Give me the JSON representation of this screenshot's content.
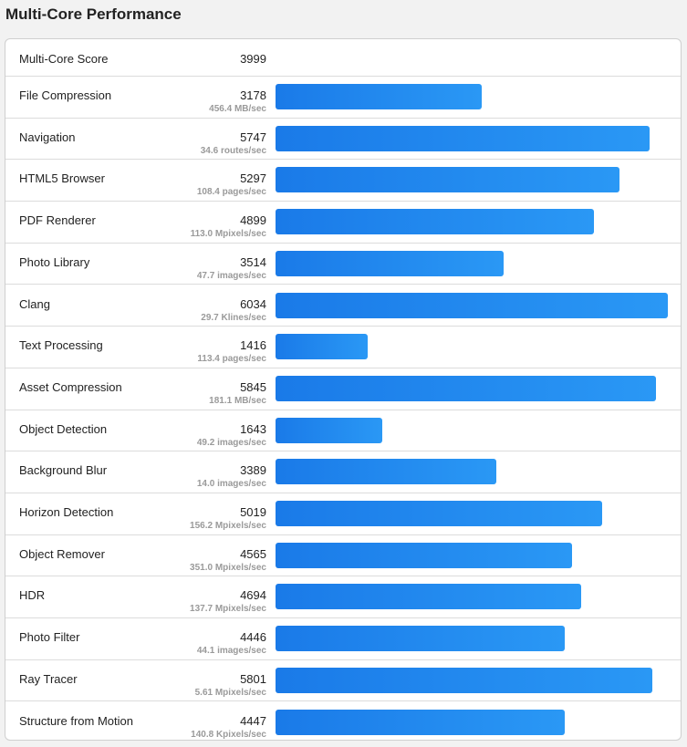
{
  "page_title": "Multi-Core Performance",
  "summary": {
    "label": "Multi-Core Score",
    "score": "3999"
  },
  "colors": {
    "bar_start": "#1a7ae8",
    "bar_end": "#2a98f5"
  },
  "chart_data": {
    "type": "bar",
    "orientation": "horizontal",
    "title": "Multi-Core Performance",
    "xlim": [
      0,
      6034
    ],
    "categories": [
      "File Compression",
      "Navigation",
      "HTML5 Browser",
      "PDF Renderer",
      "Photo Library",
      "Clang",
      "Text Processing",
      "Asset Compression",
      "Object Detection",
      "Background Blur",
      "Horizon Detection",
      "Object Remover",
      "HDR",
      "Photo Filter",
      "Ray Tracer",
      "Structure from Motion"
    ],
    "values": [
      3178,
      5747,
      5297,
      4899,
      3514,
      6034,
      1416,
      5845,
      1643,
      3389,
      5019,
      4565,
      4694,
      4446,
      5801,
      4447
    ],
    "rates": [
      "456.4 MB/sec",
      "34.6 routes/sec",
      "108.4 pages/sec",
      "113.0 Mpixels/sec",
      "47.7 images/sec",
      "29.7 Klines/sec",
      "113.4 pages/sec",
      "181.1 MB/sec",
      "49.2 images/sec",
      "14.0 images/sec",
      "156.2 Mpixels/sec",
      "351.0 Mpixels/sec",
      "137.7 Mpixels/sec",
      "44.1 images/sec",
      "5.61 Mpixels/sec",
      "140.8 Kpixels/sec"
    ]
  }
}
